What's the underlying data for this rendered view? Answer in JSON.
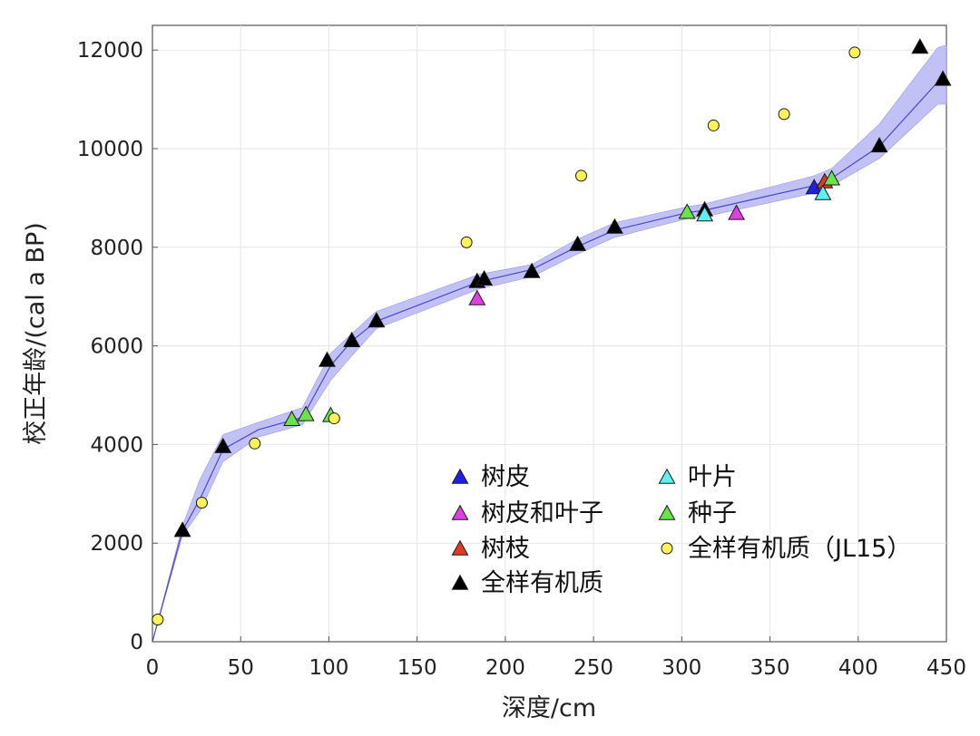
{
  "chart_data": {
    "type": "scatter",
    "xlabel": "深度/cm",
    "ylabel": "校正年龄/(cal a BP)",
    "xlim": [
      0,
      450
    ],
    "ylim": [
      0,
      12500
    ],
    "x_ticks": [
      "0",
      "50",
      "100",
      "150",
      "200",
      "250",
      "300",
      "350",
      "400",
      "450"
    ],
    "y_ticks": [
      "0",
      "2000",
      "4000",
      "6000",
      "8000",
      "10000",
      "12000"
    ],
    "grid": true,
    "legend_position": "bottom-right",
    "age_model": {
      "depth": [
        0,
        17,
        27,
        40,
        60,
        85,
        101,
        113,
        127,
        185,
        215,
        240,
        262,
        303,
        313,
        375,
        385,
        412,
        445,
        450
      ],
      "median": [
        0,
        2250,
        2900,
        3900,
        4300,
        4550,
        5600,
        6100,
        6500,
        7300,
        7550,
        8000,
        8350,
        8700,
        8750,
        9250,
        9400,
        10050,
        11350,
        11400
      ],
      "lower": [
        0,
        2150,
        2650,
        3650,
        4150,
        4400,
        5300,
        5800,
        6350,
        7150,
        7400,
        7850,
        8200,
        8580,
        8620,
        9100,
        9250,
        9800,
        10900,
        10900
      ],
      "upper": [
        0,
        2350,
        3300,
        4200,
        4450,
        4750,
        5850,
        6250,
        6700,
        7450,
        7650,
        8150,
        8500,
        8820,
        8880,
        9450,
        9600,
        10500,
        12050,
        12100
      ]
    },
    "series": [
      {
        "name": "树皮",
        "marker": "triangle",
        "color": "#1f1fe6",
        "points": [
          [
            375,
            9200
          ]
        ]
      },
      {
        "name": "树皮和叶子",
        "marker": "triangle",
        "color": "#e040e0",
        "points": [
          [
            184,
            6950
          ],
          [
            331,
            8680
          ]
        ]
      },
      {
        "name": "树枝",
        "marker": "triangle",
        "color": "#e03a24",
        "points": [
          [
            381,
            9320
          ]
        ]
      },
      {
        "name": "全样有机质",
        "marker": "triangle",
        "color": "#000000",
        "points": [
          [
            17,
            2250
          ],
          [
            40,
            3950
          ],
          [
            99,
            5700
          ],
          [
            113,
            6100
          ],
          [
            127,
            6500
          ],
          [
            184,
            7300
          ],
          [
            188,
            7350
          ],
          [
            215,
            7500
          ],
          [
            241,
            8050
          ],
          [
            262,
            8400
          ],
          [
            313,
            8750
          ],
          [
            412,
            10050
          ],
          [
            435,
            12050
          ],
          [
            448,
            11400
          ]
        ]
      },
      {
        "name": "叶片",
        "marker": "triangle",
        "color": "#5ef0f0",
        "points": [
          [
            313,
            8650
          ],
          [
            380,
            9080
          ]
        ]
      },
      {
        "name": "种子",
        "marker": "triangle",
        "color": "#6ae24a",
        "points": [
          [
            79,
            4500
          ],
          [
            87,
            4600
          ],
          [
            101,
            4580
          ],
          [
            303,
            8700
          ],
          [
            385,
            9380
          ]
        ]
      },
      {
        "name": "全样有机质（JL15）",
        "marker": "circle",
        "color": "#fcf35a",
        "points": [
          [
            3,
            450
          ],
          [
            28,
            2820
          ],
          [
            58,
            4020
          ],
          [
            103,
            4530
          ],
          [
            178,
            8100
          ],
          [
            243,
            9450
          ],
          [
            318,
            10470
          ],
          [
            358,
            10700
          ],
          [
            398,
            11950
          ]
        ]
      }
    ]
  }
}
